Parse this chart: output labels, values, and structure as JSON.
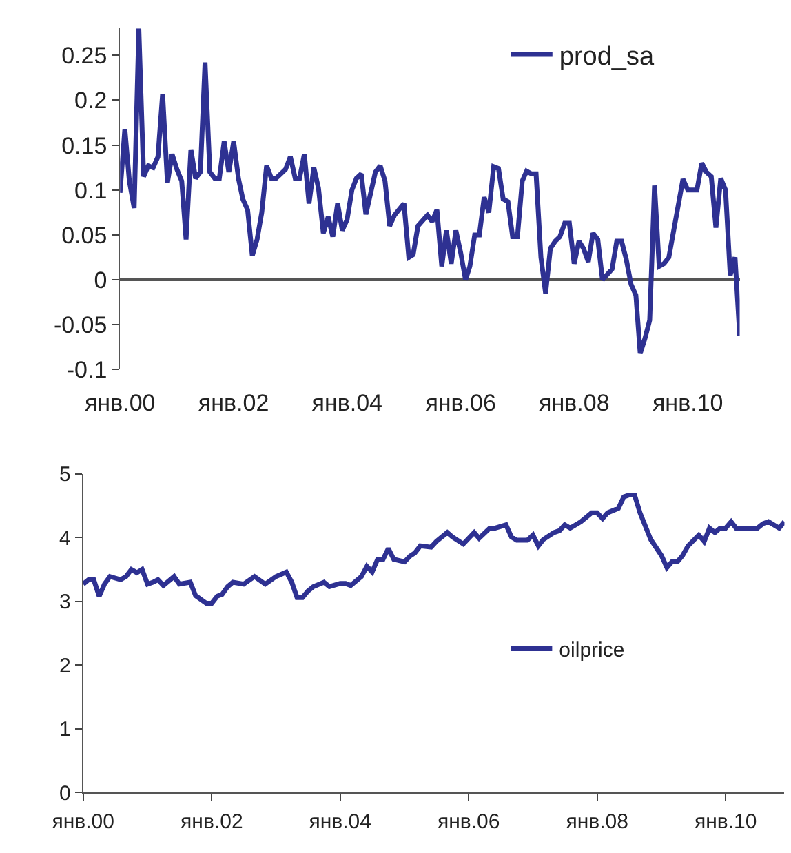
{
  "chart_data": [
    {
      "type": "line",
      "legend": "top right",
      "marker": "none",
      "line_style": "solid",
      "xlim": [
        "2000-01",
        "2010-12"
      ],
      "ylim": [
        -0.1,
        0.28
      ],
      "xticks": [
        {
          "value": "2000-01",
          "label": "янв.00"
        },
        {
          "value": "2002-01",
          "label": "янв.02"
        },
        {
          "value": "2004-01",
          "label": "янв.04"
        },
        {
          "value": "2006-01",
          "label": "янв.06"
        },
        {
          "value": "2008-01",
          "label": "янв.08"
        },
        {
          "value": "2010-01",
          "label": "янв.10"
        }
      ],
      "yticks": [
        -0.1,
        -0.05,
        0,
        0.05,
        0.1,
        0.15,
        0.2,
        0.25
      ],
      "series": [
        {
          "name": "prod_sa",
          "color": "#2e3192",
          "x": [
            "2000-01",
            "2000-02",
            "2000-03",
            "2000-04",
            "2000-05",
            "2000-06",
            "2000-07",
            "2000-08",
            "2000-09",
            "2000-10",
            "2000-11",
            "2000-12",
            "2001-01",
            "2001-02",
            "2001-03",
            "2001-04",
            "2001-05",
            "2001-06",
            "2001-07",
            "2001-08",
            "2001-09",
            "2001-10",
            "2001-11",
            "2001-12",
            "2002-01",
            "2002-02",
            "2002-03",
            "2002-04",
            "2002-05",
            "2002-06",
            "2002-07",
            "2002-08",
            "2002-09",
            "2002-10",
            "2002-12",
            "2003-01",
            "2003-02",
            "2003-03",
            "2003-04",
            "2003-05",
            "2003-06",
            "2003-07",
            "2003-08",
            "2003-09",
            "2003-10",
            "2003-11",
            "2003-12",
            "2004-01",
            "2004-02",
            "2004-03",
            "2004-04",
            "2004-05",
            "2004-07",
            "2004-08",
            "2004-09",
            "2004-10",
            "2004-11",
            "2005-01",
            "2005-02",
            "2005-03",
            "2005-04",
            "2005-06",
            "2005-07",
            "2005-08",
            "2005-09",
            "2005-10",
            "2005-11",
            "2005-12",
            "2006-01",
            "2006-02",
            "2006-03",
            "2006-04",
            "2006-05",
            "2006-06",
            "2006-07",
            "2006-08",
            "2006-09",
            "2006-10",
            "2006-11",
            "2006-12",
            "2007-01",
            "2007-02",
            "2007-03",
            "2007-04",
            "2007-05",
            "2007-06",
            "2007-07",
            "2007-08",
            "2007-09",
            "2007-10",
            "2007-11",
            "2007-12",
            "2008-01",
            "2008-02",
            "2008-03",
            "2008-04",
            "2008-05",
            "2008-06",
            "2008-07",
            "2008-09",
            "2008-10",
            "2008-11",
            "2008-12",
            "2009-01",
            "2009-02",
            "2009-03",
            "2009-04",
            "2009-05",
            "2009-06",
            "2009-07",
            "2009-08",
            "2009-09",
            "2009-12",
            "2010-01",
            "2010-03",
            "2010-04",
            "2010-05",
            "2010-06",
            "2010-07",
            "2010-08",
            "2010-09",
            "2010-10",
            "2010-11",
            "2010-12"
          ],
          "values": [
            0.097,
            0.168,
            0.11,
            0.08,
            0.28,
            0.115,
            0.127,
            0.125,
            0.137,
            0.207,
            0.108,
            0.14,
            0.123,
            0.11,
            0.045,
            0.145,
            0.113,
            0.12,
            0.242,
            0.12,
            0.113,
            0.113,
            0.154,
            0.12,
            0.154,
            0.113,
            0.09,
            0.078,
            0.027,
            0.045,
            0.075,
            0.127,
            0.113,
            0.113,
            0.123,
            0.137,
            0.113,
            0.113,
            0.14,
            0.085,
            0.125,
            0.102,
            0.052,
            0.07,
            0.048,
            0.085,
            0.055,
            0.067,
            0.1,
            0.113,
            0.118,
            0.073,
            0.12,
            0.127,
            0.11,
            0.06,
            0.072,
            0.085,
            0.025,
            0.028,
            0.06,
            0.072,
            0.065,
            0.078,
            0.015,
            0.055,
            0.018,
            0.055,
            0.03,
            0.0,
            0.015,
            0.05,
            0.05,
            0.092,
            0.075,
            0.126,
            0.124,
            0.09,
            0.087,
            0.048,
            0.048,
            0.11,
            0.121,
            0.118,
            0.118,
            0.025,
            -0.015,
            0.035,
            0.043,
            0.048,
            0.063,
            0.063,
            0.018,
            0.043,
            0.035,
            0.02,
            0.052,
            0.045,
            0.0,
            0.012,
            0.043,
            0.043,
            0.023,
            -0.005,
            -0.017,
            -0.082,
            -0.065,
            -0.045,
            0.105,
            0.015,
            0.018,
            0.025,
            0.112,
            0.1,
            0.1,
            0.13,
            0.12,
            0.115,
            0.058,
            0.113,
            0.1,
            0.005,
            0.025,
            -0.062
          ]
        }
      ]
    },
    {
      "type": "line",
      "legend": "right",
      "marker": "none",
      "line_style": "solid",
      "xlim": [
        "2000-01",
        "2010-12"
      ],
      "ylim": [
        0,
        5
      ],
      "xticks": [
        {
          "value": "2000-01",
          "label": "янв.00"
        },
        {
          "value": "2002-01",
          "label": "янв.02"
        },
        {
          "value": "2004-01",
          "label": "янв.04"
        },
        {
          "value": "2006-01",
          "label": "янв.06"
        },
        {
          "value": "2008-01",
          "label": "янв.08"
        },
        {
          "value": "2010-01",
          "label": "янв.10"
        }
      ],
      "yticks": [
        0,
        1,
        2,
        3,
        4,
        5
      ],
      "series": [
        {
          "name": "oilprice",
          "color": "#2e3192",
          "x": [
            "2000-01",
            "2000-02",
            "2000-03",
            "2000-04",
            "2000-05",
            "2000-06",
            "2000-08",
            "2000-09",
            "2000-10",
            "2000-11",
            "2000-12",
            "2001-01",
            "2001-02",
            "2001-03",
            "2001-04",
            "2001-06",
            "2001-07",
            "2001-09",
            "2001-10",
            "2001-12",
            "2002-01",
            "2002-02",
            "2002-03",
            "2002-04",
            "2002-05",
            "2002-07",
            "2002-09",
            "2002-11",
            "2003-01",
            "2003-03",
            "2003-04",
            "2003-05",
            "2003-06",
            "2003-07",
            "2003-08",
            "2003-10",
            "2003-11",
            "2004-01",
            "2004-02",
            "2004-03",
            "2004-05",
            "2004-06",
            "2004-07",
            "2004-08",
            "2004-09",
            "2004-10",
            "2004-11",
            "2005-01",
            "2005-02",
            "2005-03",
            "2005-04",
            "2005-06",
            "2005-07",
            "2005-09",
            "2005-10",
            "2005-12",
            "2006-02",
            "2006-03",
            "2006-05",
            "2006-06",
            "2006-08",
            "2006-09",
            "2006-10",
            "2006-12",
            "2007-01",
            "2007-02",
            "2007-03",
            "2007-05",
            "2007-06",
            "2007-07",
            "2007-08",
            "2007-10",
            "2007-12",
            "2008-01",
            "2008-02",
            "2008-03",
            "2008-05",
            "2008-06",
            "2008-07",
            "2008-08",
            "2008-09",
            "2008-11",
            "2009-01",
            "2009-02",
            "2009-03",
            "2009-04",
            "2009-05",
            "2009-06",
            "2009-08",
            "2009-09",
            "2009-10",
            "2009-11",
            "2009-12",
            "2010-01",
            "2010-02",
            "2010-03",
            "2010-07",
            "2010-08",
            "2010-09",
            "2010-11",
            "2010-12"
          ],
          "values": [
            3.27,
            3.34,
            3.34,
            3.08,
            3.27,
            3.39,
            3.34,
            3.39,
            3.5,
            3.45,
            3.5,
            3.27,
            3.3,
            3.34,
            3.25,
            3.39,
            3.27,
            3.3,
            3.09,
            2.97,
            2.97,
            3.08,
            3.11,
            3.23,
            3.3,
            3.27,
            3.39,
            3.27,
            3.39,
            3.46,
            3.3,
            3.06,
            3.06,
            3.16,
            3.23,
            3.3,
            3.23,
            3.28,
            3.28,
            3.25,
            3.39,
            3.55,
            3.46,
            3.66,
            3.66,
            3.83,
            3.66,
            3.62,
            3.71,
            3.76,
            3.87,
            3.85,
            3.94,
            4.08,
            4.01,
            3.9,
            4.08,
            3.99,
            4.15,
            4.15,
            4.2,
            4.01,
            3.96,
            3.96,
            4.04,
            3.87,
            3.97,
            4.08,
            4.11,
            4.2,
            4.15,
            4.25,
            4.39,
            4.39,
            4.3,
            4.39,
            4.46,
            4.64,
            4.67,
            4.67,
            4.39,
            3.97,
            3.72,
            3.53,
            3.62,
            3.62,
            3.72,
            3.87,
            4.04,
            3.94,
            4.15,
            4.08,
            4.15,
            4.15,
            4.25,
            4.15,
            4.15,
            4.22,
            4.25,
            4.15,
            4.25
          ]
        }
      ]
    }
  ]
}
